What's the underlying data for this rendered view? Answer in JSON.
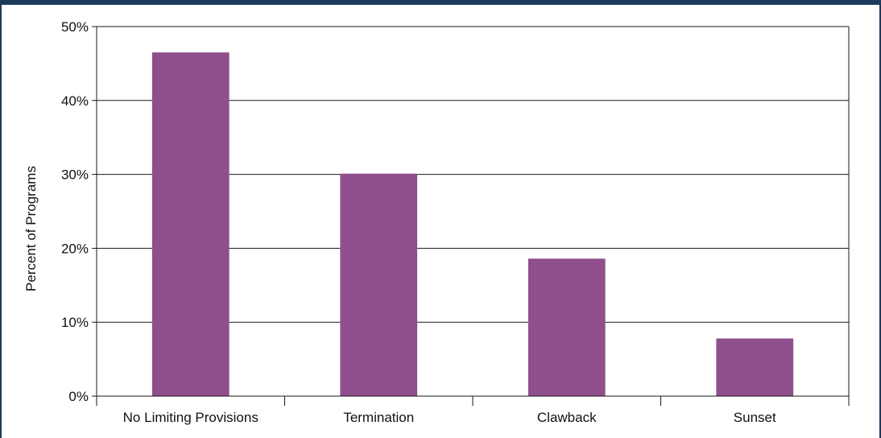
{
  "chart_data": {
    "type": "bar",
    "title": "",
    "xlabel": "",
    "ylabel": "Percent of Programs",
    "categories": [
      "No Limiting Provisions",
      "Termination",
      "Clawback",
      "Sunset"
    ],
    "values": [
      46.5,
      30.1,
      18.6,
      7.8
    ],
    "ylim": [
      0,
      50
    ],
    "yticks": [
      0,
      10,
      20,
      30,
      40,
      50
    ],
    "ytick_labels": [
      "0%",
      "10%",
      "20%",
      "30%",
      "40%",
      "50%"
    ],
    "grid": true,
    "legend": "none",
    "bar_color": "#8e4f8c",
    "frame_color": "#1f3b5c"
  }
}
